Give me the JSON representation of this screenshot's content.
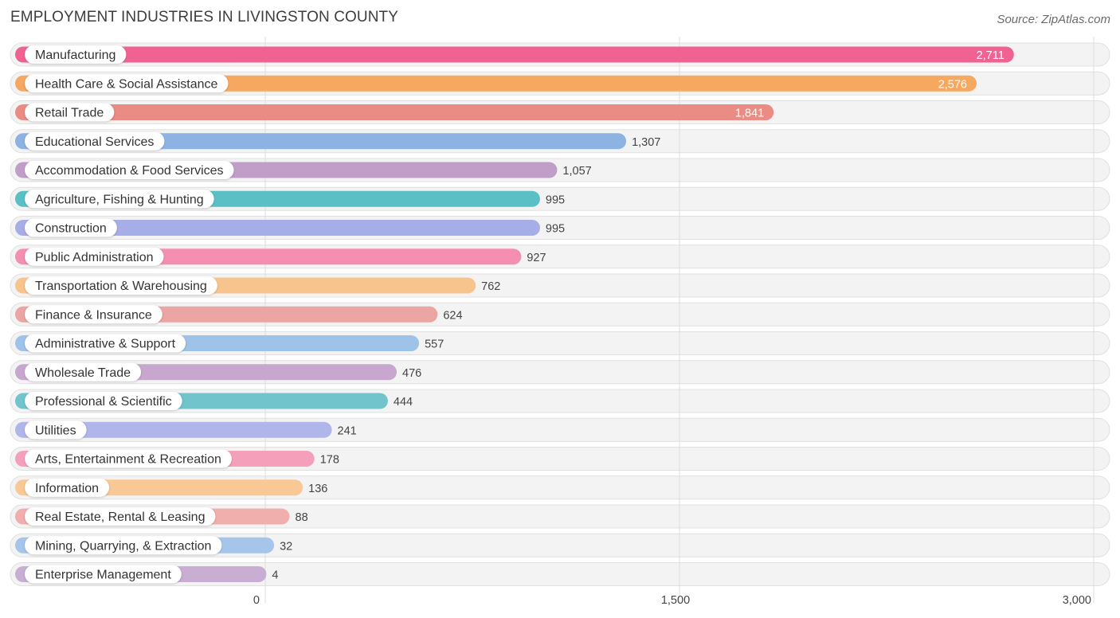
{
  "chart_data": {
    "type": "bar",
    "orientation": "horizontal",
    "title": "EMPLOYMENT INDUSTRIES IN LIVINGSTON COUNTY",
    "source": "Source: ZipAtlas.com",
    "xlabel": "",
    "ylabel": "",
    "xlim": [
      0,
      3000
    ],
    "ticks": [
      {
        "value": 0,
        "label": "0"
      },
      {
        "value": 1500,
        "label": "1,500"
      },
      {
        "value": 3000,
        "label": "3,000"
      }
    ],
    "categories": [
      "Manufacturing",
      "Health Care & Social Assistance",
      "Retail Trade",
      "Educational Services",
      "Accommodation & Food Services",
      "Agriculture, Fishing & Hunting",
      "Construction",
      "Public Administration",
      "Transportation & Warehousing",
      "Finance & Insurance",
      "Administrative & Support",
      "Wholesale Trade",
      "Professional & Scientific",
      "Utilities",
      "Arts, Entertainment & Recreation",
      "Information",
      "Real Estate, Rental & Leasing",
      "Mining, Quarrying, & Extraction",
      "Enterprise Management"
    ],
    "values": [
      2711,
      2576,
      1841,
      1307,
      1057,
      995,
      995,
      927,
      762,
      624,
      557,
      476,
      444,
      241,
      178,
      136,
      88,
      32,
      4
    ],
    "value_labels": [
      "2,711",
      "2,576",
      "1,841",
      "1,307",
      "1,057",
      "995",
      "995",
      "927",
      "762",
      "624",
      "557",
      "476",
      "444",
      "241",
      "178",
      "136",
      "88",
      "32",
      "4"
    ],
    "colors": [
      "#f06292",
      "#f6a860",
      "#ea8b84",
      "#8db3e2",
      "#c09ec8",
      "#5bbfc6",
      "#a7ade6",
      "#f48fb1",
      "#f8c48e",
      "#eba5a3",
      "#9fc2e8",
      "#c8a7cf",
      "#71c3cc",
      "#b0b5ea",
      "#f5a0bb",
      "#f9c895",
      "#f0aeac",
      "#a5c6ea",
      "#c8aed3"
    ]
  }
}
